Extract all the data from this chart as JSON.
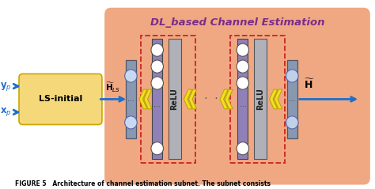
{
  "title": "DL_based Channel Estimation",
  "title_color": "#7B2D8B",
  "caption": "FIGURE 5   Architecture of channel estimation subnet. The subnet consists",
  "bg_color": "#F0A882",
  "ls_box_color": "#F5D87A",
  "ls_box_edge": "#C8A800",
  "ls_box_text": "LS-initial",
  "relu_label": "ReLU",
  "arrow_color": "#1E6FCC",
  "chevron_color": "#F0E020",
  "chevron_edge": "#B8A000",
  "purple_color": "#9080B8",
  "gray_color": "#B0B0B8",
  "input_layer_color": "#9095A8",
  "input_layer_face": "#C8D8F0",
  "dashed_color": "#CC2222",
  "output_layer_color": "#9095A8",
  "output_layer_face": "#C0D0E8",
  "dot_color": "#555555",
  "figsize": [
    4.74,
    2.39
  ],
  "dpi": 100,
  "xlim": [
    0,
    10
  ],
  "ylim": [
    0,
    5
  ]
}
